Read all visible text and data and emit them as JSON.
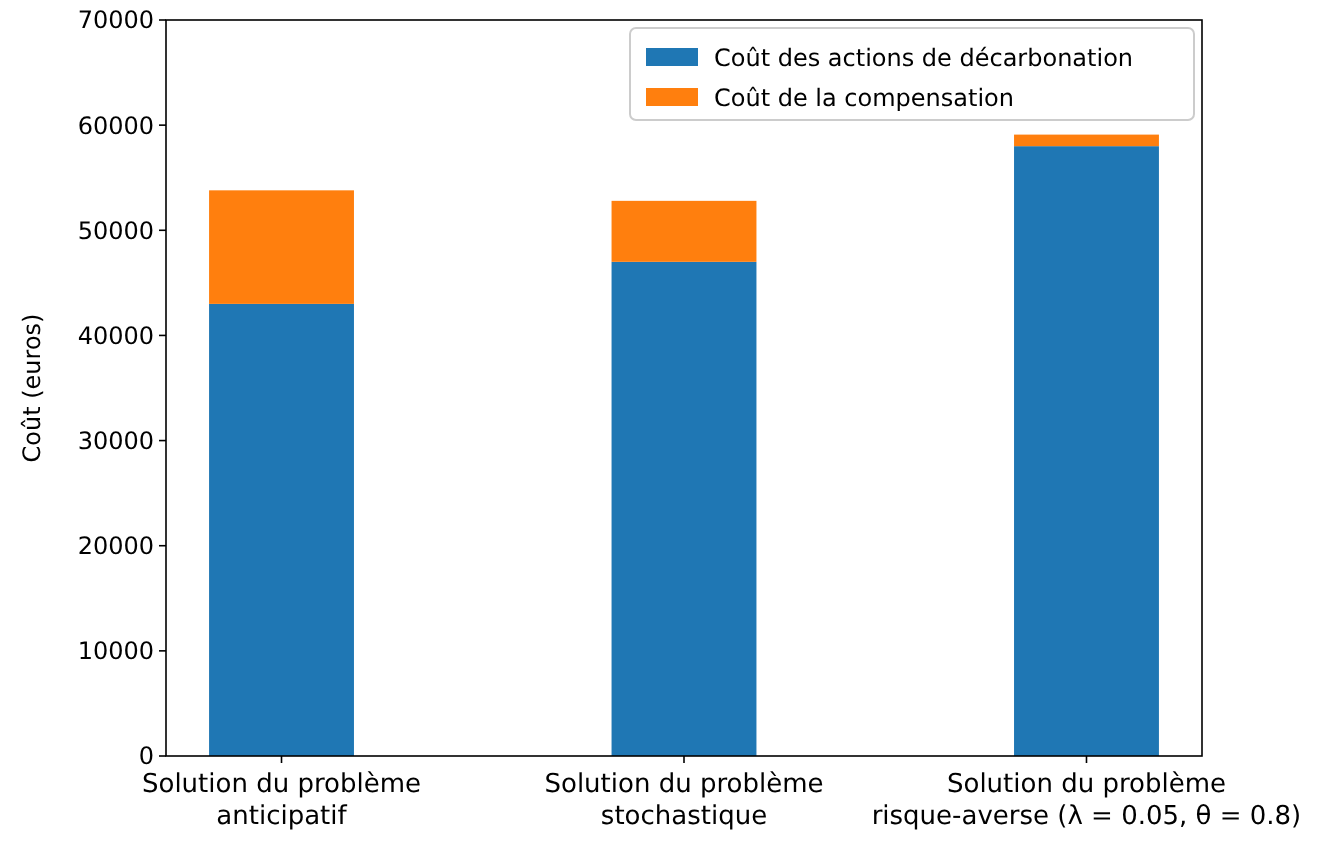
{
  "chart_data": {
    "type": "bar",
    "ylabel": "Coût (euros)",
    "categories": [
      "Solution du problème\nanticipatif",
      "Solution du problème\nstochastique",
      "Solution du problème\nrisque-averse (λ = 0.05,  θ = 0.8)"
    ],
    "stacked": true,
    "series": [
      {
        "name": "Coût des actions de décarbonation",
        "color": "#1f77b4",
        "values": [
          43000,
          47000,
          58000
        ]
      },
      {
        "name": "Coût de la compensation",
        "color": "#ff7f0e",
        "values": [
          10800,
          5800,
          1100
        ]
      }
    ],
    "ylim": [
      0,
      70000
    ],
    "yticks": [
      0,
      10000,
      20000,
      30000,
      40000,
      50000,
      60000,
      70000
    ],
    "legend": "top right"
  }
}
